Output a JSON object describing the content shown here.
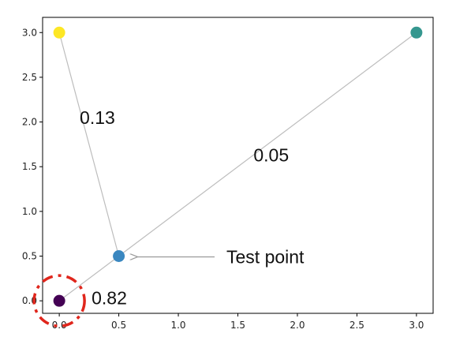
{
  "chart_data": {
    "type": "scatter",
    "title": "",
    "xlabel": "",
    "ylabel": "",
    "xlim": [
      -0.14,
      3.14
    ],
    "ylim": [
      -0.14,
      3.17
    ],
    "grid": false,
    "x_ticks": [
      "0.0",
      "0.5",
      "1.0",
      "1.5",
      "2.0",
      "2.5",
      "3.0"
    ],
    "y_ticks": [
      "0.0",
      "0.5",
      "1.0",
      "1.5",
      "2.0",
      "2.5",
      "3.0"
    ],
    "points": [
      {
        "x": 0.0,
        "y": 0.0,
        "color": "#440154"
      },
      {
        "x": 0.0,
        "y": 3.0,
        "color": "#fde725"
      },
      {
        "x": 3.0,
        "y": 3.0,
        "color": "#35978f"
      },
      {
        "x": 0.5,
        "y": 0.5,
        "color": "#3a87c0"
      }
    ],
    "edges": [
      {
        "from": [
          0.5,
          0.5
        ],
        "to": [
          0.0,
          3.0
        ],
        "label": "0.13"
      },
      {
        "from": [
          0.5,
          0.5
        ],
        "to": [
          3.0,
          3.0
        ],
        "label": "0.05"
      },
      {
        "from": [
          0.5,
          0.5
        ],
        "to": [
          0.0,
          0.0
        ],
        "label": "0.82"
      }
    ],
    "annotations": [
      {
        "text": "Test point",
        "target": [
          0.5,
          0.5
        ]
      }
    ],
    "highlight": {
      "center": [
        0.0,
        0.0
      ],
      "color": "#e0261c",
      "style": "dashed-circle"
    }
  }
}
